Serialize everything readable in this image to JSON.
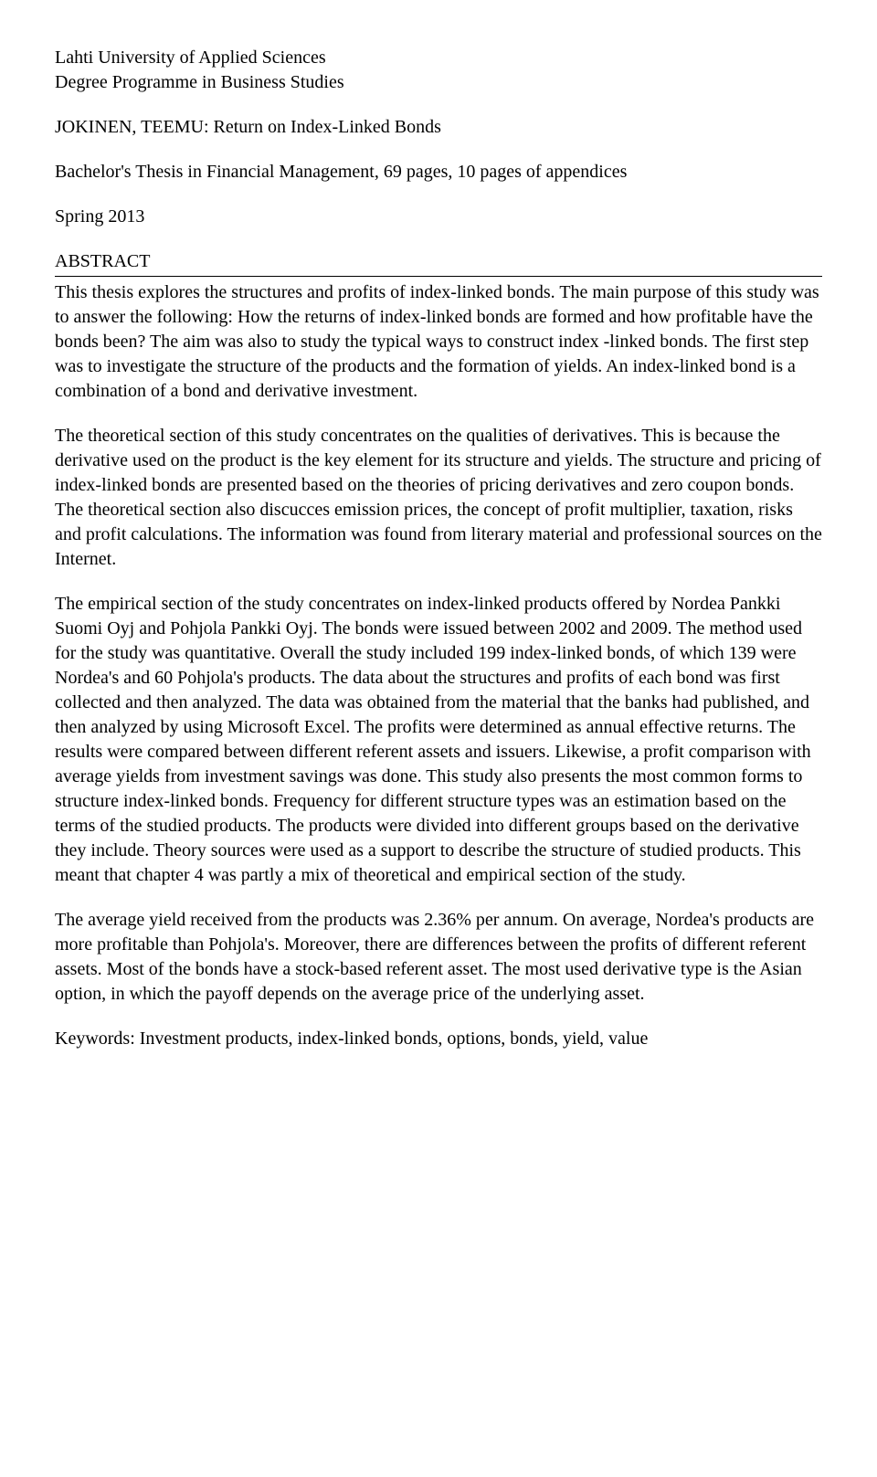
{
  "header": {
    "institution": "Lahti University of Applied Sciences",
    "programme": "Degree Programme in Business Studies",
    "author_title": "JOKINEN, TEEMU: Return on Index-Linked Bonds",
    "thesis_line": "Bachelor's Thesis in Financial Management, 69 pages, 10 pages of appendices",
    "term": "Spring 2013",
    "section": "ABSTRACT"
  },
  "paragraphs": {
    "p1": "This thesis explores the structures and profits of index-linked bonds. The main purpose of this study was to answer the following: How the returns of index-linked bonds are formed and how profitable have the bonds been? The aim was also to study the typical ways to construct index -linked bonds. The first step was to investigate the structure of the products and the formation of yields. An index-linked bond is a combination of a bond and derivative investment.",
    "p2": "The theoretical section of this study concentrates on the qualities of derivatives. This is because the derivative used on the product is the key element for its structure and yields. The structure and pricing of index-linked bonds are presented based on the theories of pricing derivatives and zero coupon bonds. The theoretical section also discucces emission prices, the concept of profit multiplier, taxation, risks and profit calculations. The information was found from literary material and professional sources on the Internet.",
    "p3": "The empirical section of the study concentrates on index-linked products offered by Nordea Pankki Suomi Oyj and Pohjola Pankki Oyj. The bonds were issued between 2002 and 2009. The method used for the study was quantitative. Overall the study included 199 index-linked bonds, of which 139 were Nordea's and 60 Pohjola's products. The data about the structures and profits of each bond was first collected and then analyzed. The data was obtained from the material that the banks had published, and then analyzed by using Microsoft Excel. The profits were determined as annual effective returns. The results were compared between different referent assets and issuers. Likewise, a profit comparison with average yields from investment savings was done. This study also presents the most common forms to structure index-linked bonds. Frequency for different structure types was an estimation based on the terms of the studied products. The products were divided into different groups based on the derivative they include. Theory sources were used as a support to describe the structure of studied products. This meant that chapter 4 was partly a mix of theoretical and empirical section of the study.",
    "p4": "The average yield received from the products was 2.36% per annum. On average, Nordea's products are more profitable than Pohjola's. Moreover, there are differences between the profits of different referent assets. Most of the bonds have a stock-based referent asset. The most used derivative type is the Asian option, in which the payoff depends on the average price of the underlying asset.",
    "keywords": "Keywords: Investment products, index-linked bonds, options, bonds, yield, value"
  }
}
